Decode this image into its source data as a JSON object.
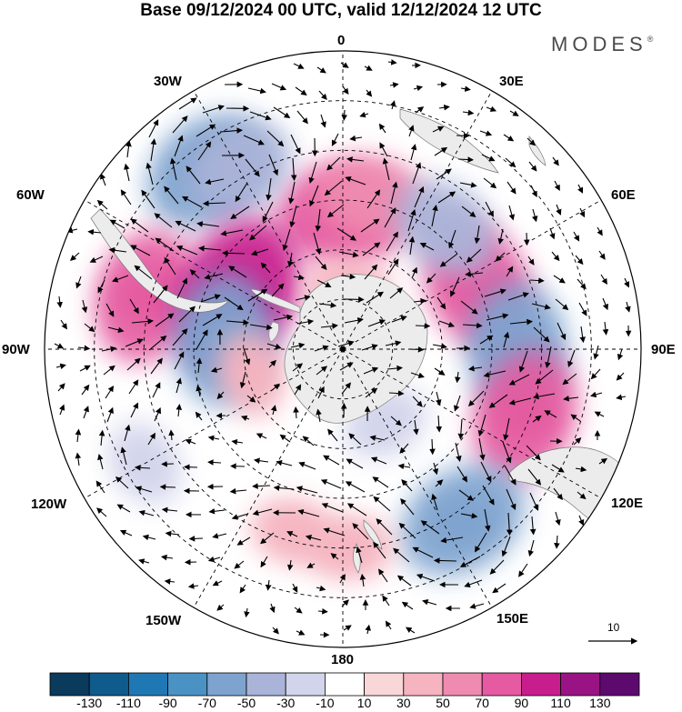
{
  "title": "Base 09/12/2024 00 UTC, valid 12/12/2024 12 UTC",
  "brand": "MODES",
  "brand_mark": "®",
  "longitude_labels": {
    "lon_0": "0",
    "lon_30e": "30E",
    "lon_60e": "60E",
    "lon_90e": "90E",
    "lon_120e": "120E",
    "lon_150e": "150E",
    "lon_180": "180",
    "lon_150w": "150W",
    "lon_120w": "120W",
    "lon_90w": "90W",
    "lon_60w": "60W",
    "lon_30w": "30W"
  },
  "reference_vector_label": "10",
  "colorbar": {
    "ticks": [
      "-130",
      "-110",
      "-90",
      "-70",
      "-50",
      "-30",
      "-10",
      "10",
      "30",
      "50",
      "70",
      "90",
      "110",
      "130"
    ],
    "colors": [
      "#0a3a5c",
      "#0f5b8c",
      "#1f78b4",
      "#4a92c4",
      "#7ea3cf",
      "#aab3d8",
      "#d2d4eb",
      "#ffffff",
      "#f9d6d8",
      "#f5b4c0",
      "#ef8bb0",
      "#e55aa0",
      "#c81d8c",
      "#9a1384",
      "#5c0a6e"
    ]
  },
  "anomaly_features": [
    {
      "sign": "positive",
      "level": "70",
      "lon": 0,
      "colat_deg": 27
    },
    {
      "sign": "positive",
      "level": "50",
      "lon": 10,
      "colat_deg": 31
    },
    {
      "sign": "negative",
      "level": "-70",
      "lon": -37,
      "colat_deg": 45
    },
    {
      "sign": "negative",
      "level": "-50",
      "lon": -30,
      "colat_deg": 42
    },
    {
      "sign": "positive",
      "level": "70",
      "lon": -75,
      "colat_deg": 41
    },
    {
      "sign": "positive",
      "level": "90",
      "lon": -62,
      "colat_deg": 24
    },
    {
      "sign": "negative",
      "level": "-70",
      "lon": -85,
      "colat_deg": 24
    },
    {
      "sign": "positive",
      "level": "70",
      "lon": 65,
      "colat_deg": 30
    },
    {
      "sign": "negative",
      "level": "-70",
      "lon": 90,
      "colat_deg": 35
    },
    {
      "sign": "positive",
      "level": "70",
      "lon": 110,
      "colat_deg": 39
    },
    {
      "sign": "negative",
      "level": "-70",
      "lon": 145,
      "colat_deg": 42
    },
    {
      "sign": "negative",
      "level": "-50",
      "lon": 40,
      "colat_deg": 32
    },
    {
      "sign": "positive",
      "level": "30",
      "lon": 178,
      "colat_deg": 40
    },
    {
      "sign": "positive",
      "level": "30",
      "lon": -165,
      "colat_deg": 38
    },
    {
      "sign": "negative",
      "level": "-30",
      "lon": -120,
      "colat_deg": 46
    },
    {
      "sign": "positive",
      "level": "30",
      "lon": -105,
      "colat_deg": 19
    },
    {
      "sign": "negative",
      "level": "-30",
      "lon": 150,
      "colat_deg": 17
    },
    {
      "sign": "positive",
      "level": "30",
      "lon": 5,
      "colat_deg": 12
    }
  ]
}
